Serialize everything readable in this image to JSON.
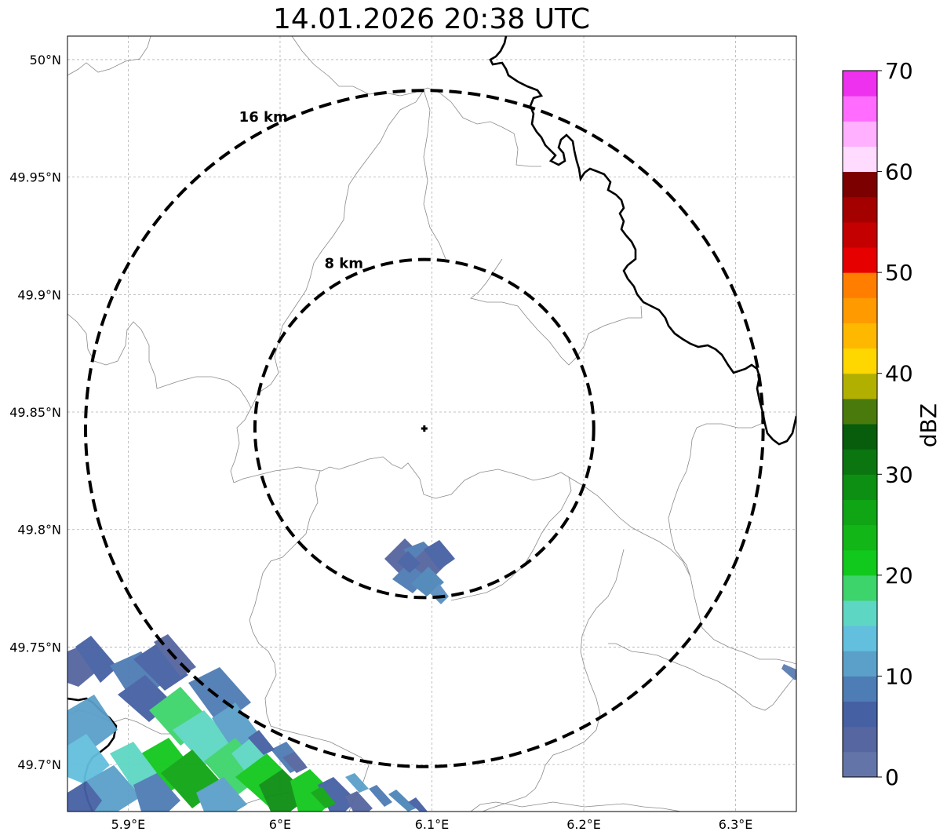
{
  "title": "14.01.2026 20:38 UTC",
  "map": {
    "lon_range": [
      5.86,
      6.34
    ],
    "lat_range": [
      49.68,
      50.01
    ],
    "x_ticks": [
      {
        "value": 5.9,
        "label": "5.9°E"
      },
      {
        "value": 6.0,
        "label": "6°E"
      },
      {
        "value": 6.1,
        "label": "6.1°E"
      },
      {
        "value": 6.2,
        "label": "6.2°E"
      },
      {
        "value": 6.3,
        "label": "6.3°E"
      }
    ],
    "y_ticks": [
      {
        "value": 50.0,
        "label": "50°N"
      },
      {
        "value": 49.95,
        "label": "49.95°N"
      },
      {
        "value": 49.9,
        "label": "49.9°N"
      },
      {
        "value": 49.85,
        "label": "49.85°N"
      },
      {
        "value": 49.8,
        "label": "49.8°N"
      },
      {
        "value": 49.75,
        "label": "49.75°N"
      },
      {
        "value": 49.7,
        "label": "49.7°N"
      }
    ],
    "radar_site": {
      "lon": 6.095,
      "lat": 49.843
    },
    "range_rings": [
      {
        "label": "8 km",
        "km": 8
      },
      {
        "label": "16 km",
        "km": 16
      }
    ],
    "grid": true
  },
  "colorbar": {
    "label": "dBZ",
    "min": 0,
    "max": 70,
    "step": 2.5,
    "tick_labels": [
      "0",
      "10",
      "20",
      "30",
      "40",
      "50",
      "60",
      "70"
    ],
    "colors": [
      "#6375a8",
      "#5566a0",
      "#4660a4",
      "#4e7cb4",
      "#5aa0c9",
      "#63bfde",
      "#5ed6c4",
      "#3dd46b",
      "#11c81c",
      "#12b616",
      "#0fa515",
      "#0c8f12",
      "#0b7510",
      "#075d0b",
      "#4a7a0b",
      "#b1b000",
      "#fed700",
      "#ffb800",
      "#ff9a00",
      "#ff7e00",
      "#e60000",
      "#c50000",
      "#a40000",
      "#7c0000",
      "#ffdcff",
      "#ffb0ff",
      "#ff6cff",
      "#ee31ee"
    ]
  },
  "reflectivity_echoes": [
    {
      "name": "small-cell-south-of-site",
      "lon_range": [
        6.07,
        6.11
      ],
      "lat_range": [
        49.77,
        49.795
      ],
      "dbz_range": [
        2,
        10
      ]
    },
    {
      "name": "band-southwest-edge",
      "lon_range": [
        5.86,
        6.1
      ],
      "lat_range": [
        49.68,
        49.755
      ],
      "dbz_range": [
        2,
        30
      ]
    },
    {
      "name": "small-echo-east-edge",
      "lon_range": [
        6.33,
        6.34
      ],
      "lat_range": [
        49.725,
        49.73
      ],
      "dbz_range": [
        5,
        10
      ]
    }
  ]
}
